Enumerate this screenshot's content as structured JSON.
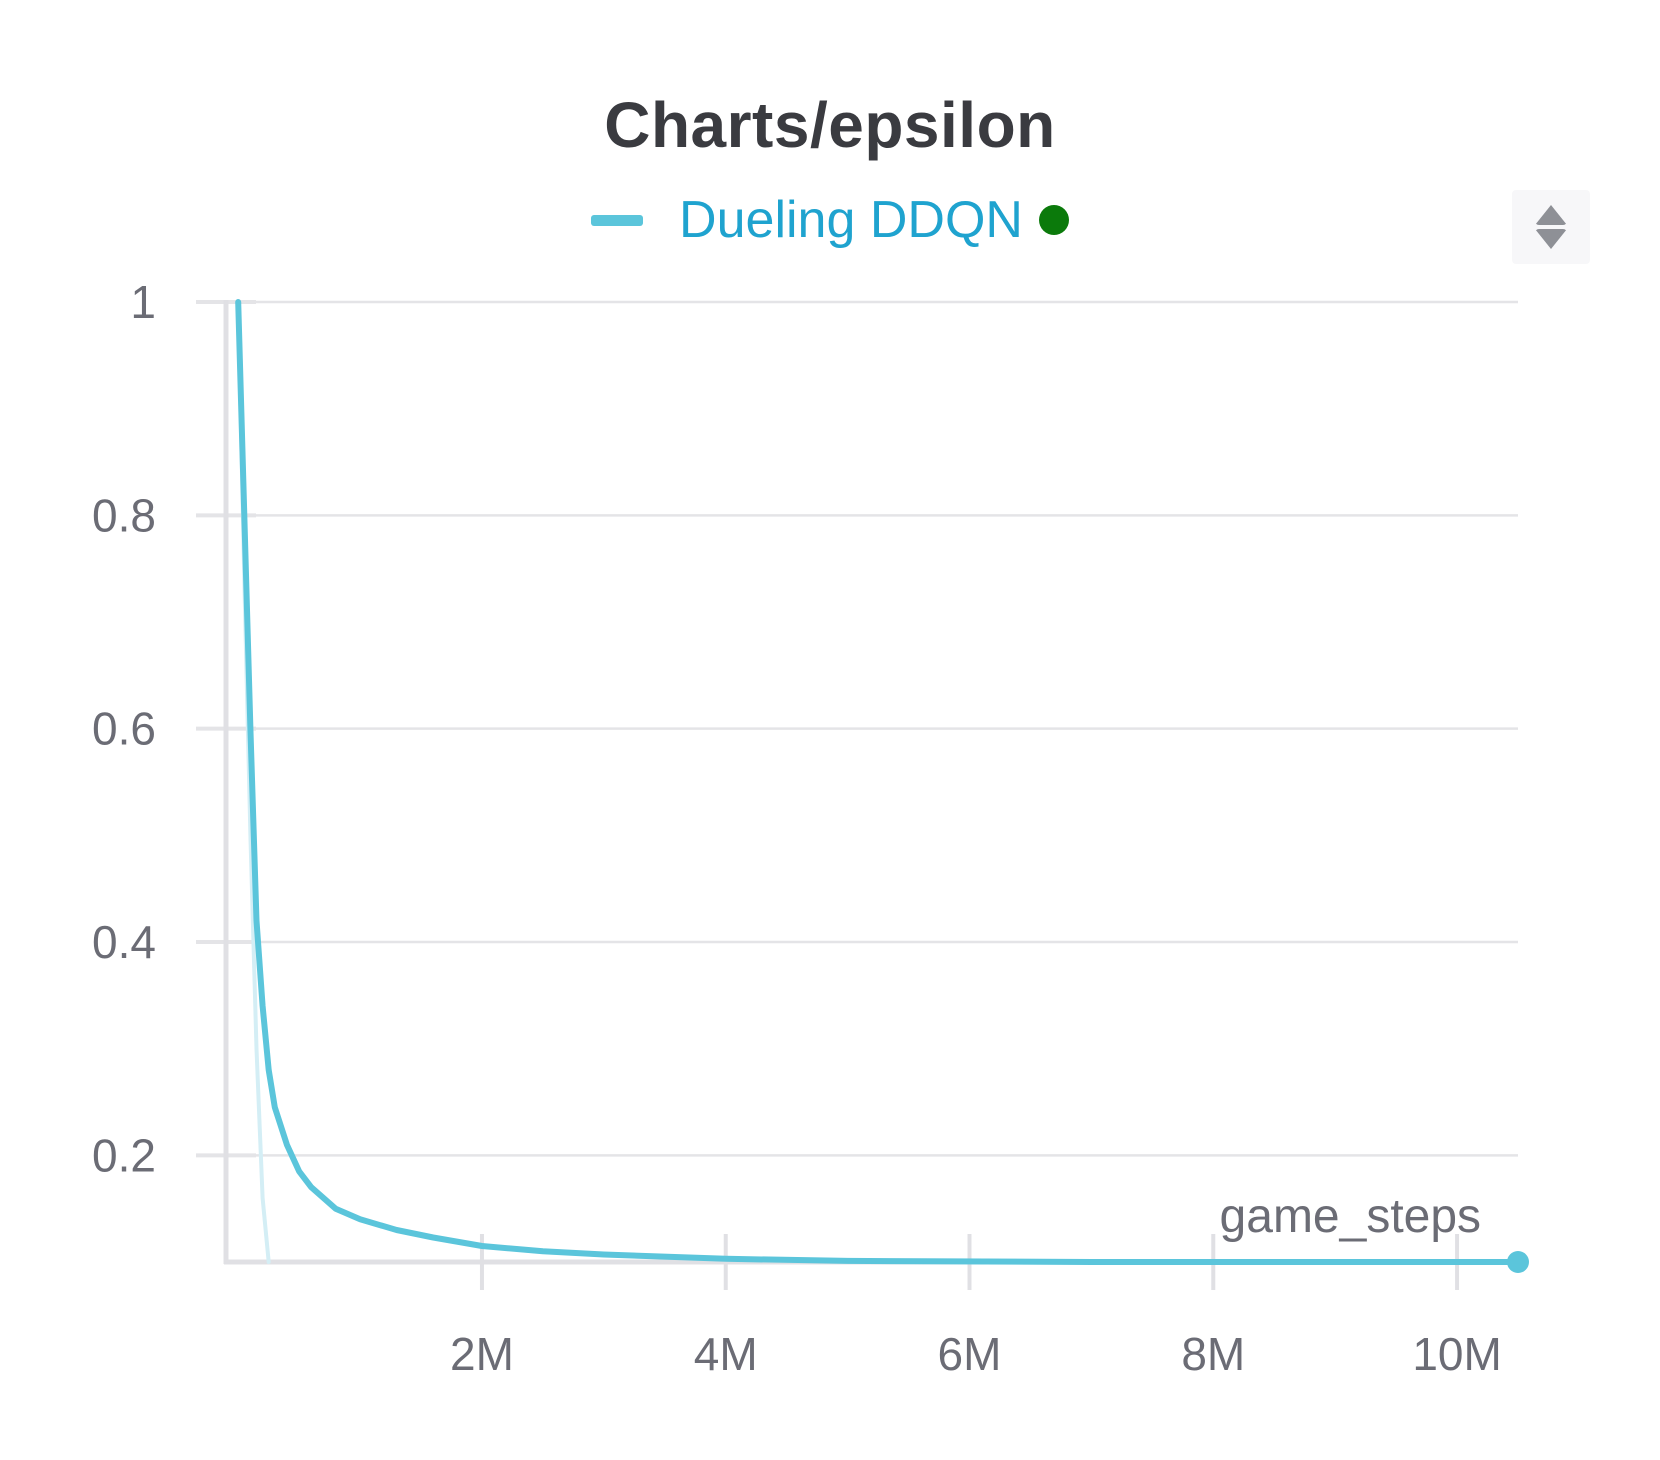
{
  "panel": {
    "title": "Charts/epsilon",
    "sort_toggle_icon": "sort-up-down-icon"
  },
  "legend": {
    "label": "Dueling DDQN",
    "series_color": "#5bc5db",
    "label_color": "#1fa3cf",
    "status_color": "#0b7a0b"
  },
  "chart_data": {
    "type": "line",
    "title": "Charts/epsilon",
    "xlabel": "game_steps",
    "ylabel": "",
    "xlim": [
      -0.1,
      10.5
    ],
    "ylim": [
      0.1,
      1.0
    ],
    "x_unit": "M",
    "x_ticks": [
      2,
      4,
      6,
      8,
      10
    ],
    "x_tick_labels": [
      "2M",
      "4M",
      "6M",
      "8M",
      "10M"
    ],
    "y_ticks": [
      0.2,
      0.4,
      0.6,
      0.8,
      1.0
    ],
    "y_tick_labels": [
      "0.2",
      "0.4",
      "0.6",
      "0.8",
      "1"
    ],
    "grid": true,
    "legend_position": "top-center",
    "series": [
      {
        "name": "Dueling DDQN",
        "color": "#5bc5db",
        "style": "smoothed",
        "x": [
          0,
          0.05,
          0.1,
          0.15,
          0.2,
          0.25,
          0.3,
          0.4,
          0.5,
          0.6,
          0.8,
          1.0,
          1.3,
          1.6,
          2.0,
          2.5,
          3.0,
          4.0,
          5.0,
          7.0,
          10.5
        ],
        "y": [
          1.0,
          0.8,
          0.6,
          0.42,
          0.34,
          0.28,
          0.245,
          0.21,
          0.185,
          0.17,
          0.15,
          0.14,
          0.13,
          0.123,
          0.115,
          0.11,
          0.107,
          0.103,
          0.101,
          0.1,
          0.1
        ]
      },
      {
        "name": "Dueling DDQN (raw)",
        "color": "#d4eef5",
        "style": "raw",
        "x": [
          0,
          0.05,
          0.1,
          0.15,
          0.2,
          0.25
        ],
        "y": [
          1.0,
          0.74,
          0.5,
          0.3,
          0.16,
          0.1
        ]
      }
    ]
  }
}
